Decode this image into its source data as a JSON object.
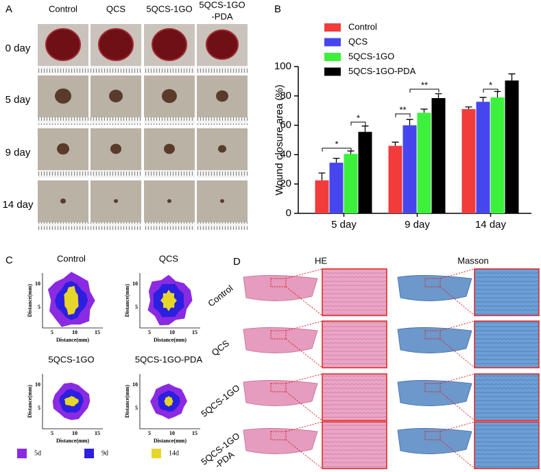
{
  "panel_labels": [
    "A",
    "B",
    "C",
    "D"
  ],
  "wound_photos": {
    "column_headers": [
      [
        "Control"
      ],
      [
        "QCS"
      ],
      [
        "5QCS-1GO"
      ],
      [
        "5QCS-1GO",
        "-PDA"
      ]
    ],
    "row_labels": [
      "0 day",
      "5 day",
      "9 day",
      "14 day"
    ]
  },
  "chart_data": {
    "type": "bar",
    "y_label": "Wound closure area (%)",
    "categories": [
      "5 day",
      "9 day",
      "14 day"
    ],
    "series": [
      {
        "name": "Control",
        "color": "#f23c3c",
        "values": [
          22.5,
          46,
          71
        ],
        "errors": [
          5,
          2.5,
          1.5
        ]
      },
      {
        "name": "QCS",
        "color": "#4646ee",
        "values": [
          34.5,
          60,
          76
        ],
        "errors": [
          3,
          4,
          3
        ]
      },
      {
        "name": "5QCS-1GO",
        "color": "#3cf03c",
        "values": [
          40.5,
          68.5,
          79
        ],
        "errors": [
          2,
          2.5,
          4
        ]
      },
      {
        "name": "5QCS-1GO-PDA",
        "color": "#000000",
        "values": [
          55.5,
          78.5,
          90.5
        ],
        "errors": [
          4,
          3,
          4.5
        ]
      }
    ],
    "ylim": [
      0,
      100
    ],
    "yticks": [
      0,
      20,
      40,
      60,
      80,
      100
    ],
    "annotations": [
      "*",
      "*",
      "**",
      "**",
      "*"
    ]
  },
  "contour_maps": {
    "titles": [
      "Control",
      "QCS",
      "5QCS-1GO",
      "5QCS-1GO-PDA"
    ],
    "axis_label": "Distance(mm)",
    "x_ticks": [
      "5",
      "10",
      "15"
    ],
    "y_ticks": [
      "10",
      "5"
    ],
    "legend": [
      {
        "label": "5d",
        "color": "#8a2be2"
      },
      {
        "label": "9d",
        "color": "#2b1fe0"
      },
      {
        "label": "14d",
        "color": "#e6d62a"
      }
    ]
  },
  "histology": {
    "columns": [
      "HE",
      "Masson"
    ],
    "row_labels": [
      [
        "Control"
      ],
      [
        "QCS"
      ],
      [
        "5QCS-1GO"
      ],
      [
        "5QCS-1GO",
        "-PDA"
      ]
    ]
  }
}
